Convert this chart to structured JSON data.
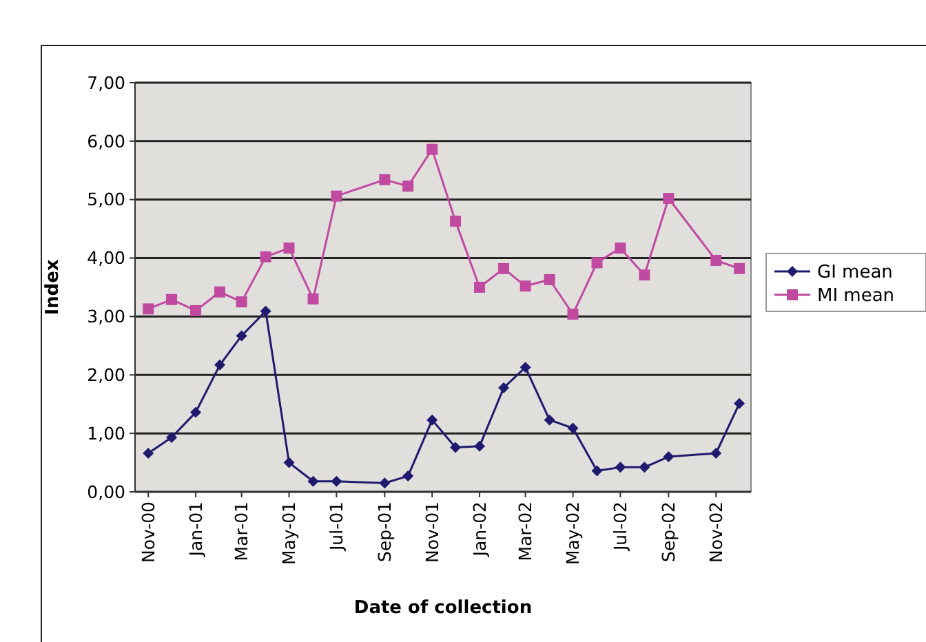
{
  "chart_data": {
    "type": "line",
    "xlabel": "Date of collection",
    "ylabel": "Index",
    "x": [
      "2000-11",
      "2000-12",
      "2001-01",
      "2001-02",
      "2001-03",
      "2001-04",
      "2001-05",
      "2001-06",
      "2001-07",
      "2001-09",
      "2001-10",
      "2001-11",
      "2001-12",
      "2002-01",
      "2002-02",
      "2002-03",
      "2002-04",
      "2002-05",
      "2002-06",
      "2002-07",
      "2002-08",
      "2002-09",
      "2002-11",
      "2002-12"
    ],
    "series": [
      {
        "name": "GI mean",
        "color": "#1f1a6e",
        "marker": "diamond",
        "values": [
          0.66,
          0.93,
          1.36,
          2.17,
          2.67,
          3.09,
          0.5,
          0.18,
          0.18,
          0.15,
          0.27,
          1.23,
          0.76,
          0.78,
          1.78,
          2.13,
          1.23,
          1.09,
          0.36,
          0.42,
          0.42,
          0.6,
          0.66,
          1.51
        ]
      },
      {
        "name": "MI mean",
        "color": "#c04aa0",
        "marker": "square",
        "values": [
          3.13,
          3.29,
          3.1,
          3.42,
          3.25,
          4.02,
          4.17,
          3.3,
          5.06,
          5.34,
          5.23,
          5.86,
          4.63,
          3.5,
          3.82,
          3.52,
          3.63,
          3.04,
          3.92,
          4.17,
          3.71,
          5.02,
          3.96,
          3.82
        ]
      }
    ],
    "xlim": [
      "2000-10-15",
      "2002-12-16"
    ],
    "xticks": [
      {
        "value": "2000-11",
        "label": "Nov-00"
      },
      {
        "value": "2001-01",
        "label": "Jan-01"
      },
      {
        "value": "2001-03",
        "label": "Mar-01"
      },
      {
        "value": "2001-05",
        "label": "May-01"
      },
      {
        "value": "2001-07",
        "label": "Jul-01"
      },
      {
        "value": "2001-09",
        "label": "Sep-01"
      },
      {
        "value": "2001-11",
        "label": "Nov-01"
      },
      {
        "value": "2002-01",
        "label": "Jan-02"
      },
      {
        "value": "2002-03",
        "label": "Mar-02"
      },
      {
        "value": "2002-05",
        "label": "May-02"
      },
      {
        "value": "2002-07",
        "label": "Jul-02"
      },
      {
        "value": "2002-09",
        "label": "Sep-02"
      },
      {
        "value": "2002-11",
        "label": "Nov-02"
      }
    ],
    "ylim": [
      0,
      7
    ],
    "yticks": [
      {
        "value": 0,
        "label": "0,00"
      },
      {
        "value": 1,
        "label": "1,00"
      },
      {
        "value": 2,
        "label": "2,00"
      },
      {
        "value": 3,
        "label": "3,00"
      },
      {
        "value": 4,
        "label": "4,00"
      },
      {
        "value": 5,
        "label": "5,00"
      },
      {
        "value": 6,
        "label": "6,00"
      },
      {
        "value": 7,
        "label": "7,00"
      }
    ],
    "grid": "y",
    "legend": "right",
    "line_style": "solid"
  }
}
